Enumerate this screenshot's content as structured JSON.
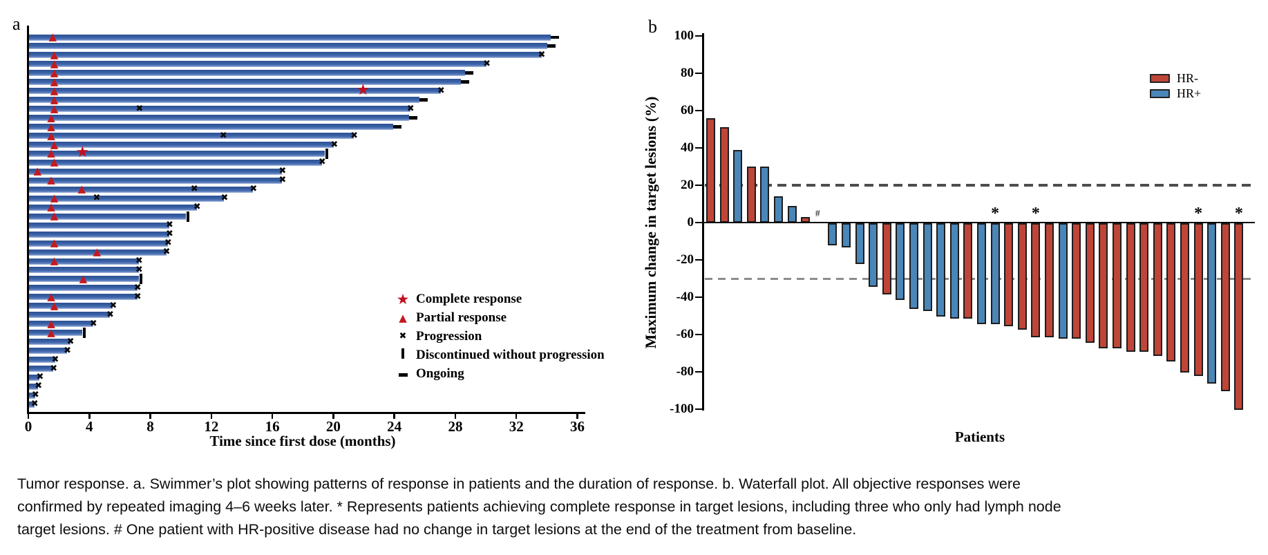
{
  "figure": {
    "panel_a_label": "a",
    "panel_b_label": "b"
  },
  "colors": {
    "swimmer_bar_blue": "#3a62a8",
    "hr_negative_red": "#bf4538",
    "hr_positive_blue": "#4a86b8",
    "marker_red": "#c41a1f",
    "reference_dash_20": "#4d4d4d",
    "reference_dash_30": "#8c8c8c"
  },
  "caption": {
    "text": "Tumor response. a. Swimmer’s plot showing patterns of response in patients and the duration of response. b. Waterfall plot. All objective responses were confirmed by repeated imaging 4–6 weeks later. * Represents patients achieving complete response in target lesions, including three who only had lymph node target lesions. # One patient with HR-positive disease had no change in target lesions at the end of the treatment from baseline."
  },
  "chart_data": [
    {
      "type": "bar",
      "variant": "swimmer",
      "xlabel": "Time since first dose (months)",
      "x_ticks": [
        0,
        4,
        8,
        12,
        16,
        20,
        24,
        28,
        32,
        36
      ],
      "xlim": [
        0,
        38
      ],
      "unit": "months",
      "legend": [
        {
          "icon": "star-icon",
          "label": "Complete response"
        },
        {
          "icon": "triangle-icon",
          "label": "Partial response"
        },
        {
          "icon": "x-icon",
          "label": "Progression"
        },
        {
          "icon": "vertical-bar-icon",
          "label": "Discontinued without progression"
        },
        {
          "icon": "dash-icon",
          "label": "Ongoing"
        }
      ],
      "bars": [
        {
          "len": 34.2,
          "end": "ongoing",
          "tri": 1.7
        },
        {
          "len": 34.0,
          "end": "ongoing"
        },
        {
          "len": 33.6,
          "end": "progression",
          "tri": 1.8
        },
        {
          "len": 30.0,
          "end": "progression",
          "tri": 1.8
        },
        {
          "len": 28.6,
          "end": "ongoing",
          "tri": 1.8
        },
        {
          "len": 28.3,
          "end": "ongoing",
          "tri": 1.8
        },
        {
          "len": 27.0,
          "end": "progression",
          "tri": 1.8,
          "star": 22.0
        },
        {
          "len": 25.6,
          "end": "ongoing",
          "tri": 1.8
        },
        {
          "len": 25.0,
          "end": "progression",
          "tri": 1.8,
          "xmid": 7.4
        },
        {
          "len": 24.9,
          "end": "ongoing",
          "tri": 1.6
        },
        {
          "len": 23.9,
          "end": "ongoing",
          "tri": 1.6
        },
        {
          "len": 21.3,
          "end": "progression",
          "tri": 1.6,
          "xmid": 12.9
        },
        {
          "len": 20.0,
          "end": "progression",
          "tri": 1.8
        },
        {
          "len": 19.4,
          "end": "discontinued",
          "tri": 1.6,
          "star": 3.6
        },
        {
          "len": 19.2,
          "end": "progression",
          "tri": 1.8
        },
        {
          "len": 16.6,
          "end": "progression",
          "tri": 0.7
        },
        {
          "len": 16.6,
          "end": "progression",
          "tri": 1.6
        },
        {
          "len": 14.7,
          "end": "progression",
          "tri": 3.6,
          "xmid": 11.0
        },
        {
          "len": 12.8,
          "end": "progression",
          "tri": 1.8,
          "xmid": 4.6
        },
        {
          "len": 11.0,
          "end": "progression",
          "tri": 1.6
        },
        {
          "len": 10.3,
          "end": "discontinued",
          "tri": 1.8
        },
        {
          "len": 9.2,
          "end": "progression"
        },
        {
          "len": 9.2,
          "end": "progression"
        },
        {
          "len": 9.1,
          "end": "progression",
          "tri": 1.8
        },
        {
          "len": 9.0,
          "end": "progression",
          "tri": 4.6
        },
        {
          "len": 7.2,
          "end": "progression",
          "tri": 1.8
        },
        {
          "len": 7.2,
          "end": "progression"
        },
        {
          "len": 7.2,
          "end": "discontinued",
          "tri": 3.7
        },
        {
          "len": 7.1,
          "end": "progression"
        },
        {
          "len": 7.1,
          "end": "progression",
          "tri": 1.6
        },
        {
          "len": 5.5,
          "end": "progression",
          "tri": 1.8
        },
        {
          "len": 5.3,
          "end": "progression"
        },
        {
          "len": 4.2,
          "end": "progression",
          "tri": 1.6
        },
        {
          "len": 3.5,
          "end": "discontinued",
          "tri": 1.6
        },
        {
          "len": 2.7,
          "end": "progression"
        },
        {
          "len": 2.5,
          "end": "progression"
        },
        {
          "len": 1.7,
          "end": "progression"
        },
        {
          "len": 1.6,
          "end": "progression"
        },
        {
          "len": 0.7,
          "end": "progression"
        },
        {
          "len": 0.6,
          "end": "progression"
        },
        {
          "len": 0.4,
          "end": "progression"
        },
        {
          "len": 0.35,
          "end": "progression"
        }
      ]
    },
    {
      "type": "bar",
      "variant": "waterfall",
      "ylabel": "Maximum change in target lesions (%)",
      "xlabel": "Patients",
      "ylim": [
        -100,
        100
      ],
      "y_ticks": [
        100,
        80,
        60,
        40,
        20,
        0,
        -20,
        -40,
        -60,
        -80,
        -100
      ],
      "reference_lines": [
        20,
        -30
      ],
      "legend": [
        {
          "label": "HR-",
          "group": "HR-"
        },
        {
          "label": "HR+",
          "group": "HR+"
        }
      ],
      "patients": [
        {
          "value": 56,
          "group": "HR-"
        },
        {
          "value": 51,
          "group": "HR-"
        },
        {
          "value": 39,
          "group": "HR+"
        },
        {
          "value": 30,
          "group": "HR-"
        },
        {
          "value": 30,
          "group": "HR+"
        },
        {
          "value": 14,
          "group": "HR+"
        },
        {
          "value": 9,
          "group": "HR+"
        },
        {
          "value": 3,
          "group": "HR-"
        },
        {
          "value": 0,
          "group": "HR+",
          "mark": "#"
        },
        {
          "value": -12,
          "group": "HR+"
        },
        {
          "value": -13,
          "group": "HR+"
        },
        {
          "value": -22,
          "group": "HR+"
        },
        {
          "value": -34,
          "group": "HR+"
        },
        {
          "value": -38,
          "group": "HR-"
        },
        {
          "value": -41,
          "group": "HR+"
        },
        {
          "value": -46,
          "group": "HR+"
        },
        {
          "value": -47,
          "group": "HR+"
        },
        {
          "value": -50,
          "group": "HR+"
        },
        {
          "value": -51,
          "group": "HR+"
        },
        {
          "value": -51,
          "group": "HR-"
        },
        {
          "value": -54,
          "group": "HR+"
        },
        {
          "value": -54,
          "group": "HR+",
          "mark": "*"
        },
        {
          "value": -55,
          "group": "HR-"
        },
        {
          "value": -57,
          "group": "HR-"
        },
        {
          "value": -61,
          "group": "HR-",
          "mark": "*"
        },
        {
          "value": -61,
          "group": "HR-"
        },
        {
          "value": -62,
          "group": "HR+"
        },
        {
          "value": -62,
          "group": "HR-"
        },
        {
          "value": -64,
          "group": "HR-"
        },
        {
          "value": -67,
          "group": "HR-"
        },
        {
          "value": -67,
          "group": "HR-"
        },
        {
          "value": -69,
          "group": "HR-"
        },
        {
          "value": -69,
          "group": "HR-"
        },
        {
          "value": -71,
          "group": "HR-"
        },
        {
          "value": -74,
          "group": "HR-"
        },
        {
          "value": -80,
          "group": "HR-"
        },
        {
          "value": -82,
          "group": "HR-",
          "mark": "*"
        },
        {
          "value": -86,
          "group": "HR+"
        },
        {
          "value": -90,
          "group": "HR-"
        },
        {
          "value": -100,
          "group": "HR-",
          "mark": "*"
        }
      ]
    }
  ]
}
